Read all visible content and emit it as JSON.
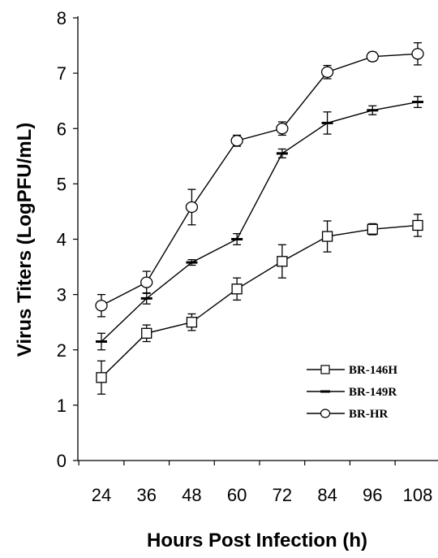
{
  "chart_data": {
    "type": "line",
    "xlabel": "Hours Post Infection (h)",
    "ylabel": "Virus Titers (LogPFU/mL)",
    "x": [
      24,
      36,
      48,
      60,
      72,
      84,
      96,
      108
    ],
    "x_tick_labels": [
      "24",
      "36",
      "48",
      "60",
      "72",
      "84",
      "96",
      "108"
    ],
    "ylim": [
      0,
      8
    ],
    "y_ticks": [
      0,
      1,
      2,
      3,
      4,
      5,
      6,
      7,
      8
    ],
    "y_tick_labels": [
      "0",
      "1",
      "2",
      "3",
      "4",
      "5",
      "6",
      "7",
      "8"
    ],
    "grid": false,
    "legend_position": "bottom-right",
    "series": [
      {
        "name": "BR-146H",
        "marker": "square",
        "values": [
          1.5,
          2.3,
          2.5,
          3.1,
          3.6,
          4.05,
          4.18,
          4.25
        ],
        "errors": [
          0.3,
          0.15,
          0.15,
          0.2,
          0.3,
          0.28,
          0.1,
          0.2
        ]
      },
      {
        "name": "BR-149R",
        "marker": "dash",
        "values": [
          2.15,
          2.93,
          3.58,
          4.0,
          5.55,
          6.1,
          6.33,
          6.48
        ],
        "errors": [
          0.15,
          0.1,
          0.05,
          0.1,
          0.08,
          0.2,
          0.08,
          0.1
        ]
      },
      {
        "name": "BR-HR",
        "marker": "circle",
        "values": [
          2.8,
          3.22,
          4.58,
          5.78,
          6.0,
          7.02,
          7.3,
          7.35
        ],
        "errors": [
          0.2,
          0.2,
          0.32,
          0.1,
          0.12,
          0.12,
          0.08,
          0.2
        ]
      }
    ]
  }
}
